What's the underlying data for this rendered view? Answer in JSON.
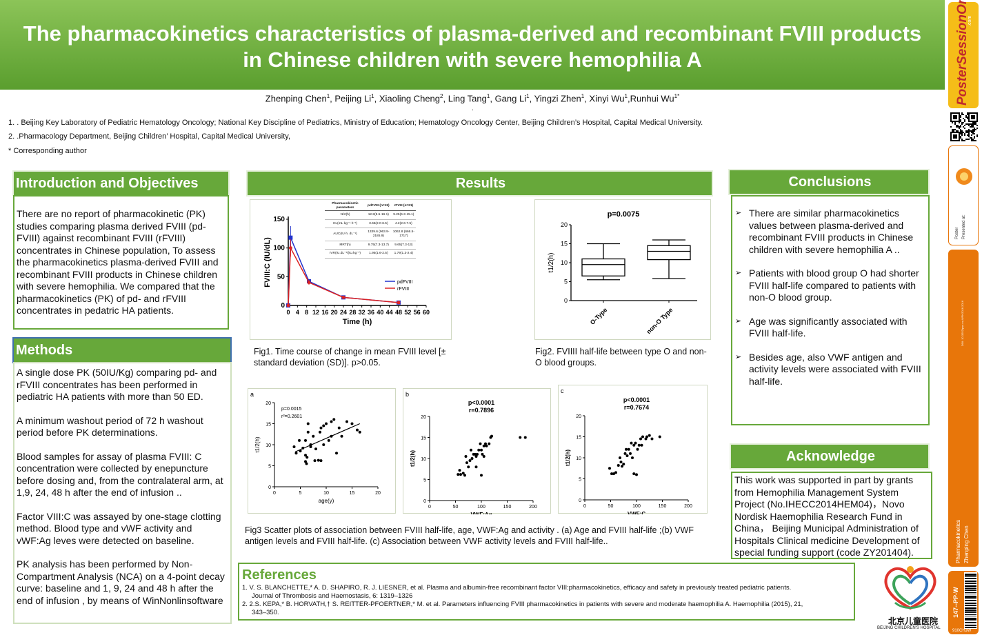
{
  "title": {
    "line1": "The pharmacokinetics characteristics of plasma-derived and recombinant FVIII products",
    "line2": "in Chinese children with severe hemophilia A"
  },
  "authors": [
    {
      "name": "Zhenping Chen",
      "aff": "1"
    },
    {
      "name": "Peijing Li",
      "aff": "1"
    },
    {
      "name": "Xiaoling Cheng",
      "aff": "2"
    },
    {
      "name": "Ling Tang",
      "aff": "1"
    },
    {
      "name": "Gang Li",
      "aff": "1"
    },
    {
      "name": "Yingzi Zhen",
      "aff": "1"
    },
    {
      "name": "Xinyi Wu",
      "aff": "1"
    },
    {
      "name": "Runhui Wu",
      "aff": "1*"
    }
  ],
  "dot": ".",
  "affiliations": {
    "a1": "1.    . Beijing Key Laboratory of Pediatric Hematology Oncology; National Key Discipline of Pediatrics, Ministry of Education; Hematology Oncology Center, Beijing Children’s Hospital, Capital Medical University.",
    "a2": "2.     .Pharmacology Department, Beijing Children’ Hospital, Capital Medical University,",
    "corr": "* Corresponding author"
  },
  "intro": {
    "heading": "Introduction and Objectives",
    "text": "There  are no report of pharmacokinetic (PK) studies comparing plasma derived FVIII (pd-FVIII) against recombinant FVIII (rFVIII) concentrates in Chinese population, To assess the pharmacokinetics plasma-derived FVIII and recombinant FVIII products in Chinese children with severe hemophilia. We compared that the pharmacokinetics (PK) of pd- and rFVIII concentrates in pedatric HA patients."
  },
  "methods": {
    "heading": "Methods",
    "p1": "A single dose PK (50IU/Kg) comparing pd- and rFVIII concentrates has been performed in pediatric HA patients with more than 50 ED.",
    "p2": "A minimum washout period of 72 h washout period before PK determinations.",
    "p3": " Blood samples for assay of plasma FVIII: C concentration were collected by enepuncture before dosing and, from the contralateral arm, at 1,9, 24, 48 h after the end of infusion ..",
    "p4": "Factor VIII:C was assayed by one-stage clotting method. Blood  type and  vWF activity and vWF:Ag leves were detected on baseline.",
    "p5": "PK analysis has been performed by Non-Compartment Analysis (NCA) on a 4-point decay curve: baseline and 1, 9, 24 and 48 h after the end of infusion , by means of WinNonlinsoftware"
  },
  "results": {
    "heading": "Results",
    "fig1_caption": "Fig1. Time course of change in mean FVIII level [± standard deviation (SD)]. p>0.05.",
    "fig2_caption": " Fig2. FVIIII half-life between type O and non-O blood groups.",
    "fig3_caption": " Fig3 Scatter plots of association between FVIII half-life, age, VWF:Ag and activity . (a) Age and FVIII half-life ;(b) VWF antigen levels and FVIII half-life. (c) Association between VWF activity levels and FVIII half-life.."
  },
  "pk_table": {
    "headers": [
      "Pharmacokinetic parameters",
      "pdFVIII (n=15)",
      "rFVIII (n=21)"
    ],
    "rows": [
      [
        "t1/2(h)",
        "12.8(5.5-16.1)",
        "9.25(6.3-15.1)"
      ],
      [
        "CL(mL·kg⁻¹·h⁻¹)",
        "3.65(2.0-6.5)",
        "4.2(2.6-7.5)"
      ],
      [
        "AUC(IU·h. dL⁻¹)",
        "1339.6 (963.9-2185.9)",
        "1062.8 (666.5-1717)"
      ],
      [
        "MRT(h)",
        "9.75(7.3-13.7)",
        "9.65(7.3-13)"
      ],
      [
        "IVR(IU.dL⁻¹/(IU.kg⁻¹)",
        "1.95(1.6-2.5)",
        "1.79(1.3-2.4)"
      ]
    ]
  },
  "chart_data": [
    {
      "type": "line",
      "ylabel": "FVIII:C (IU/dL)",
      "xlabel": "Time (h)",
      "ylim": [
        0,
        150
      ],
      "xlim": [
        0,
        60
      ],
      "x_ticks": [
        "0",
        "4",
        "8",
        "12",
        "16",
        "20",
        "24",
        "28",
        "32",
        "36",
        "40",
        "44",
        "48",
        "52",
        "56",
        "60"
      ],
      "y_ticks": [
        "0",
        "50",
        "100",
        "150"
      ],
      "legend_position": "right",
      "series": [
        {
          "name": "pdFVIII",
          "color": "#2233cc",
          "x": [
            0,
            1,
            9,
            24,
            48
          ],
          "y": [
            0,
            118,
            42,
            14,
            5
          ],
          "err": [
            0,
            20,
            4,
            2,
            1
          ]
        },
        {
          "name": "rFVIII",
          "color": "#dd2222",
          "x": [
            0,
            1,
            9,
            24,
            48
          ],
          "y": [
            0,
            100,
            40,
            14,
            5
          ],
          "err": [
            0,
            15,
            4,
            2,
            1
          ]
        }
      ]
    },
    {
      "type": "box",
      "title": "p=0.0075",
      "ylabel": "t1/2(h)",
      "ylim": [
        0,
        20
      ],
      "y_ticks": [
        "0",
        "5",
        "10",
        "15",
        "20"
      ],
      "categories": [
        "O-Type",
        "non-O Type"
      ],
      "boxes": [
        {
          "min": 5.5,
          "q1": 6.5,
          "median": 9.5,
          "q3": 11,
          "max": 15
        },
        {
          "min": 5.8,
          "q1": 10.8,
          "median": 13,
          "q3": 14.5,
          "max": 16
        }
      ]
    },
    {
      "type": "scatter",
      "label": "a",
      "annot1": "p=0.0015",
      "annot2": "r²=0.2601",
      "xlabel": "age(y)",
      "ylabel": "t1/2(h)",
      "xlim": [
        0,
        20
      ],
      "ylim": [
        0,
        20
      ],
      "x_ticks": [
        "0",
        "5",
        "10",
        "15",
        "20"
      ],
      "y_ticks": [
        "0",
        "5",
        "10",
        "15",
        "20"
      ],
      "fit": [
        [
          4,
          8.3
        ],
        [
          16.5,
          15
        ]
      ],
      "points": [
        [
          3.8,
          9.5
        ],
        [
          4.2,
          8
        ],
        [
          4.8,
          11
        ],
        [
          5,
          8.5
        ],
        [
          5.5,
          9.2
        ],
        [
          6,
          11
        ],
        [
          6,
          6
        ],
        [
          6.2,
          5.5
        ],
        [
          6.3,
          7
        ],
        [
          6.5,
          13
        ],
        [
          6.5,
          15
        ],
        [
          7,
          10
        ],
        [
          7.5,
          12
        ],
        [
          7.8,
          6.2
        ],
        [
          8,
          9
        ],
        [
          8.5,
          6.3
        ],
        [
          8.8,
          13
        ],
        [
          9,
          14
        ],
        [
          9,
          6.2
        ],
        [
          9.5,
          14.5
        ],
        [
          9.5,
          10
        ],
        [
          10,
          15
        ],
        [
          10.5,
          11
        ],
        [
          11,
          15.5
        ],
        [
          11,
          12
        ],
        [
          11.5,
          16
        ],
        [
          12,
          8
        ],
        [
          12.5,
          14
        ],
        [
          13,
          12
        ],
        [
          14,
          15.5
        ],
        [
          15,
          15
        ],
        [
          16,
          13.5
        ],
        [
          16.5,
          13
        ],
        [
          7,
          9.5
        ],
        [
          6,
          7.5
        ]
      ]
    },
    {
      "type": "scatter",
      "label": "b",
      "annot1": "p<0.0001",
      "annot2": "r=0.7896",
      "xlabel": "VWF:Ag",
      "ylabel": "t1/2(h)",
      "xlim": [
        0,
        200
      ],
      "ylim": [
        0,
        20
      ],
      "x_ticks": [
        "0",
        "50",
        "100",
        "150",
        "200"
      ],
      "y_ticks": [
        "0",
        "5",
        "10",
        "15",
        "20"
      ],
      "points": [
        [
          55,
          6.2
        ],
        [
          58,
          7.2
        ],
        [
          60,
          6.2
        ],
        [
          65,
          6.5
        ],
        [
          68,
          6
        ],
        [
          70,
          10.5
        ],
        [
          72,
          9
        ],
        [
          75,
          8
        ],
        [
          78,
          9.5
        ],
        [
          80,
          12
        ],
        [
          82,
          10
        ],
        [
          85,
          11
        ],
        [
          88,
          11
        ],
        [
          90,
          10.5
        ],
        [
          92,
          11
        ],
        [
          95,
          12
        ],
        [
          98,
          13.5
        ],
        [
          100,
          6
        ],
        [
          102,
          11
        ],
        [
          105,
          13
        ],
        [
          108,
          13.5
        ],
        [
          110,
          13
        ],
        [
          115,
          13.5
        ],
        [
          118,
          15
        ],
        [
          120,
          15.3
        ],
        [
          100,
          12
        ],
        [
          175,
          15
        ],
        [
          185,
          15
        ],
        [
          90,
          8
        ],
        [
          105,
          10.5
        ]
      ]
    },
    {
      "type": "scatter",
      "label": "c",
      "annot1": "p<0.0001",
      "annot2": "r=0.7674",
      "xlabel": "VWF:C",
      "ylabel": "t1/2(h)",
      "xlim": [
        0,
        200
      ],
      "ylim": [
        0,
        20
      ],
      "x_ticks": [
        "0",
        "50",
        "100",
        "150",
        "200"
      ],
      "y_ticks": [
        "0",
        "5",
        "10",
        "15",
        "20"
      ],
      "points": [
        [
          48,
          7.5
        ],
        [
          52,
          6.2
        ],
        [
          56,
          6.2
        ],
        [
          60,
          6.5
        ],
        [
          65,
          8.2
        ],
        [
          68,
          10
        ],
        [
          70,
          9
        ],
        [
          72,
          8
        ],
        [
          75,
          8.5
        ],
        [
          78,
          11
        ],
        [
          80,
          12
        ],
        [
          82,
          10.5
        ],
        [
          85,
          12
        ],
        [
          88,
          11
        ],
        [
          90,
          13.5
        ],
        [
          92,
          10
        ],
        [
          95,
          13
        ],
        [
          98,
          13.5
        ],
        [
          100,
          6
        ],
        [
          102,
          12
        ],
        [
          105,
          13
        ],
        [
          108,
          14.5
        ],
        [
          110,
          13
        ],
        [
          112,
          15
        ],
        [
          118,
          14.5
        ],
        [
          120,
          15
        ],
        [
          125,
          15.3
        ],
        [
          130,
          14.5
        ],
        [
          145,
          15
        ],
        [
          95,
          6.2
        ]
      ]
    }
  ],
  "conclusions": {
    "heading": "Conclusions",
    "items": [
      "  There are similar  pharmacokinetics values between plasma-derived and recombinant FVIII products in Chinese children with severe hemophilia A ..",
      "   Patients with blood group O had shorter FVIII half-life compared to patients with non-O blood group.",
      "  Age was significantly associated  with FVIII half-life.",
      "  Besides age, also VWF antigen and activity levels were associated with FVIII half-life."
    ]
  },
  "acknowledge": {
    "heading": "Acknowledge",
    "text": "This work was supported in part by grants from Hemophilia Management System Project (No.IHECC2014HEM04)，Novo Nordisk Haemophilia Research Fund in China， Beijing Municipal Administration of Hospitals Clinical medicine Development of special funding support (code ZY201404)."
  },
  "references": {
    "heading": "References",
    "r1": "1.  V. S. BLANCHETTE,* A. D. SHAPIRO, R. J. LIESNER, et al. Plasma and albumin-free recombinant factor VIII:pharmacokinetics, efficacy and safety in previously treated pediatric patients.",
    "r1b": "Journal of Thrombosis and Haemostasis, 6: 1319–1326",
    "r2": "2. 2.S. KEPA,* B. HORVATH,† S. REITTER-PFOERTNER,* M. et al. Parameters influencing FVIII pharmacokinetics in patients with severe and moderate haemophilia A. Haemophilia (2015), 21,",
    "r2b": "343–350."
  },
  "hospital": {
    "name_cn": "北京儿童医院",
    "name_en": "BEIJING CHILDREN'S HOSPITAL"
  },
  "sidebar": {
    "brand": "PosterSessionOnline",
    "brand_suffix": ".com",
    "presented_at": "Presented at:",
    "poster": "Poster",
    "doi": "DOI: 10.3252/pso.eu.WFH2016.2016",
    "topic": "Pharmacokinetics",
    "author": "Zhenping Chen",
    "code": "147--PP-W",
    "id": "910CHJW"
  },
  "colors": {
    "green": "#67a83a",
    "orange": "#e8760a",
    "blue_series": "#2233cc",
    "red_series": "#dd2222"
  }
}
